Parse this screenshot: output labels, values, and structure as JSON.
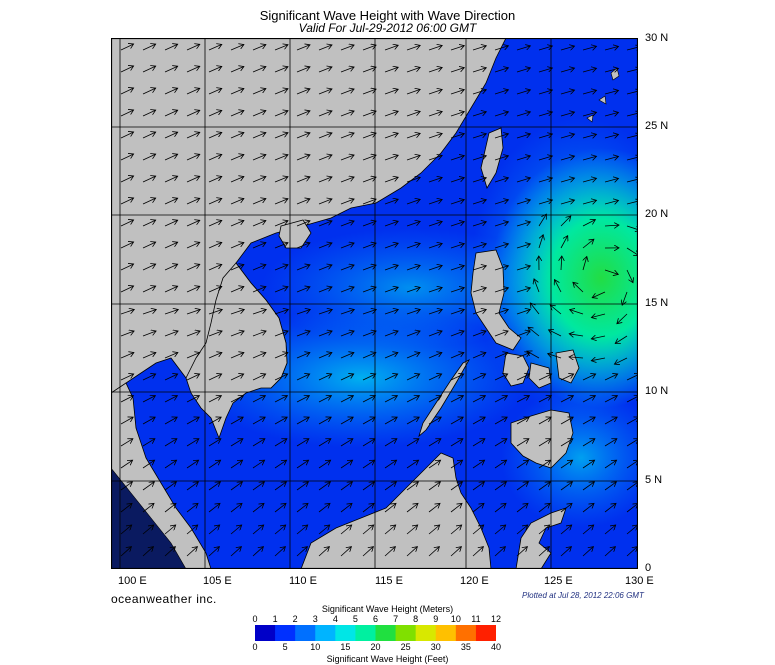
{
  "header": {
    "title": "Significant Wave Height with Wave Direction",
    "subtitle": "Valid For Jul-29-2012 06:00 GMT"
  },
  "map": {
    "lon_labels": [
      "100 E",
      "105 E",
      "110 E",
      "115 E",
      "120 E",
      "125 E",
      "130 E"
    ],
    "lat_labels": [
      "30 N",
      "25 N",
      "20 N",
      "15 N",
      "10 N",
      "5 N",
      "0"
    ],
    "lon_range": [
      99,
      130
    ],
    "lat_range": [
      0,
      30
    ],
    "colors": {
      "land": "#c0c0c0",
      "deep": "#0022cc",
      "high": "#22dd44",
      "grid": "#000000"
    }
  },
  "footer": {
    "brand": "oceanweather inc.",
    "plotted": "Plotted at Jul 28, 2012 22:06 GMT"
  },
  "colorbar": {
    "title_meters": "Significant Wave Height (Meters)",
    "title_feet": "Significant Wave Height (Feet)",
    "meters_ticks": [
      "0",
      "1",
      "2",
      "3",
      "4",
      "5",
      "6",
      "7",
      "8",
      "9",
      "10",
      "11",
      "12"
    ],
    "feet_ticks": [
      "0",
      "5",
      "10",
      "15",
      "20",
      "25",
      "30",
      "35",
      "40"
    ],
    "colors": [
      "#0000c8",
      "#0030ff",
      "#0070ff",
      "#00b4ff",
      "#00e6e6",
      "#00f0a0",
      "#20e040",
      "#80e000",
      "#d8e800",
      "#ffc000",
      "#ff7000",
      "#ff2000"
    ]
  }
}
